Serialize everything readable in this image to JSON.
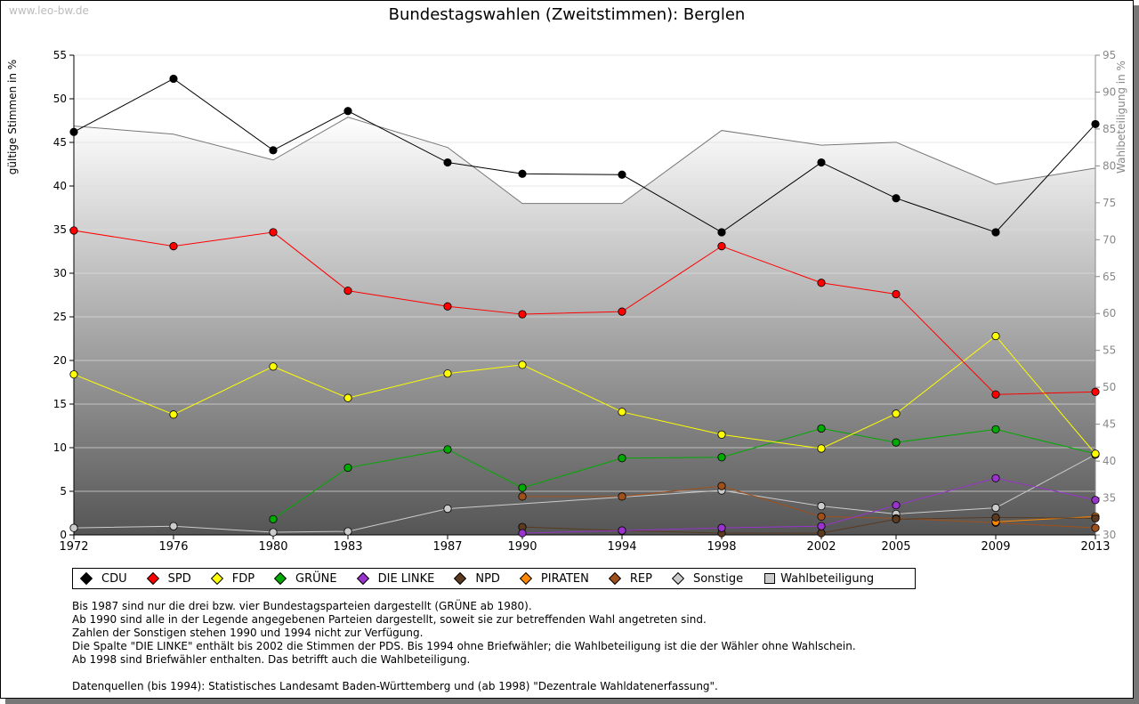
{
  "watermark": "www.leo-bw.de",
  "chart_data": {
    "type": "line",
    "title": "Bundestagswahlen (Zweitstimmen): Berglen",
    "ylabel": "gültige Stimmen in %",
    "y2label": "Wahlbeteiligung in %",
    "ylim": [
      0,
      55
    ],
    "y2lim": [
      30,
      95
    ],
    "yticks": [
      "0",
      "5",
      "10",
      "15",
      "20",
      "25",
      "30",
      "35",
      "40",
      "45",
      "50",
      "55"
    ],
    "y2ticks": [
      "30",
      "35",
      "40",
      "45",
      "50",
      "55",
      "60",
      "65",
      "70",
      "75",
      "80",
      "85",
      "90",
      "95"
    ],
    "x": [
      "1972",
      "1976",
      "1980",
      "1983",
      "1987",
      "1990",
      "1994",
      "1998",
      "2002",
      "2005",
      "2009",
      "2013"
    ],
    "series": [
      {
        "name": "CDU",
        "color": "#000000",
        "values": [
          46.2,
          52.3,
          44.1,
          48.6,
          42.7,
          41.4,
          41.3,
          34.7,
          42.7,
          38.6,
          34.7,
          47.1
        ]
      },
      {
        "name": "SPD",
        "color": "#ff0000",
        "values": [
          34.9,
          33.1,
          34.7,
          28.0,
          26.2,
          25.3,
          25.6,
          33.1,
          28.9,
          27.6,
          16.1,
          16.4
        ]
      },
      {
        "name": "FDP",
        "color": "#ffff00",
        "values": [
          18.4,
          13.8,
          19.3,
          15.7,
          18.5,
          19.5,
          14.1,
          11.5,
          9.9,
          13.9,
          22.8,
          9.3
        ]
      },
      {
        "name": "GRÜNE",
        "color": "#00aa00",
        "values": [
          null,
          null,
          1.8,
          7.7,
          9.8,
          5.4,
          8.8,
          8.9,
          12.2,
          10.6,
          12.1,
          9.3
        ]
      },
      {
        "name": "DIE LINKE",
        "color": "#9933cc",
        "values": [
          null,
          null,
          null,
          null,
          null,
          0.2,
          0.5,
          0.8,
          1.0,
          3.4,
          6.5,
          4.0
        ]
      },
      {
        "name": "NPD",
        "color": "#5a3a20",
        "values": [
          null,
          null,
          null,
          null,
          null,
          0.9,
          0.5,
          0.2,
          0.2,
          1.8,
          2.0,
          1.9
        ]
      },
      {
        "name": "PIRATEN",
        "color": "#ff8800",
        "values": [
          null,
          null,
          null,
          null,
          null,
          null,
          null,
          null,
          null,
          null,
          1.5,
          2.1
        ]
      },
      {
        "name": "REP",
        "color": "#a0501a",
        "values": [
          null,
          null,
          null,
          null,
          null,
          4.4,
          4.4,
          5.6,
          2.1,
          1.9,
          1.4,
          0.8
        ]
      },
      {
        "name": "Sonstige",
        "color": "#cccccc",
        "values": [
          0.8,
          1.0,
          0.3,
          0.4,
          3.0,
          null,
          null,
          5.1,
          3.3,
          2.4,
          3.1,
          9.2
        ]
      }
    ],
    "turnout": {
      "name": "Wahlbeteiligung",
      "color": "#cccccc",
      "axis": "right",
      "values": [
        85.4,
        84.3,
        80.8,
        86.6,
        82.5,
        74.9,
        74.9,
        84.8,
        82.8,
        83.2,
        77.5,
        79.7
      ]
    },
    "legend_position": "bottom"
  },
  "notes": [
    "Bis 1987 sind nur die drei bzw. vier Bundestagsparteien dargestellt (GRÜNE ab 1980).",
    "Ab 1990 sind alle in der Legende angegebenen Parteien dargestellt, soweit sie zur betreffenden Wahl angetreten sind.",
    "Zahlen der Sonstigen stehen 1990 und 1994 nicht zur Verfügung.",
    "Die Spalte \"DIE LINKE\" enthält bis 2002 die Stimmen der PDS. Bis 1994 ohne Briefwähler; die Wahlbeteiligung ist die der Wähler ohne Wahlschein.",
    "Ab 1998 sind Briefwähler enthalten. Das betrifft auch die Wahlbeteiligung.",
    "",
    "Datenquellen (bis 1994): Statistisches Landesamt Baden-Württemberg und (ab 1998) \"Dezentrale Wahldatenerfassung\"."
  ]
}
